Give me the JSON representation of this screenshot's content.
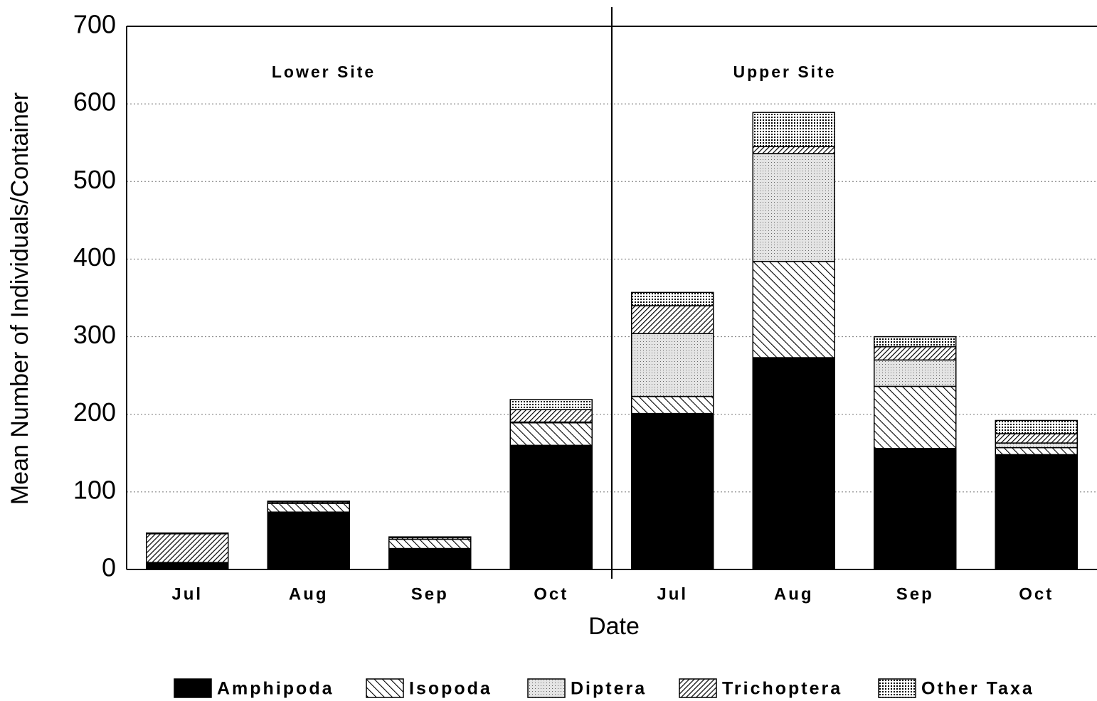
{
  "chart_data": {
    "type": "stacked_bar",
    "x_label": "Date",
    "y_label": "Mean Number of Individuals/Container",
    "annotations": [
      "Lower Site",
      "Upper Site"
    ],
    "categories": [
      "Jul",
      "Aug",
      "Sep",
      "Oct",
      "Jul",
      "Aug",
      "Sep",
      "Oct"
    ],
    "series": [
      {
        "name": "Amphipoda",
        "color": "#000000",
        "pattern": "solid",
        "values": [
          9,
          74,
          27,
          160,
          201,
          273,
          156,
          148
        ]
      },
      {
        "name": "Isopoda",
        "color": "#000000",
        "pattern": "hatch",
        "values": [
          0,
          11,
          12,
          29,
          22,
          124,
          80,
          9
        ]
      },
      {
        "name": "Diptera",
        "color": "#000000",
        "pattern": "dots",
        "values": [
          0,
          0,
          0,
          1,
          81,
          139,
          34,
          6
        ]
      },
      {
        "name": "Trichoptera",
        "color": "#000000",
        "pattern": "densehatch",
        "values": [
          37,
          2,
          2,
          16,
          36,
          9,
          17,
          12
        ]
      },
      {
        "name": "Other Taxa",
        "color": "#000000",
        "pattern": "grid",
        "values": [
          1,
          1,
          1,
          13,
          17,
          44,
          13,
          17
        ]
      }
    ],
    "ylim": [
      0,
      700
    ],
    "yticks": [
      0,
      100,
      200,
      300,
      400,
      500,
      600,
      700
    ],
    "grid": true,
    "legend": "bottom"
  }
}
